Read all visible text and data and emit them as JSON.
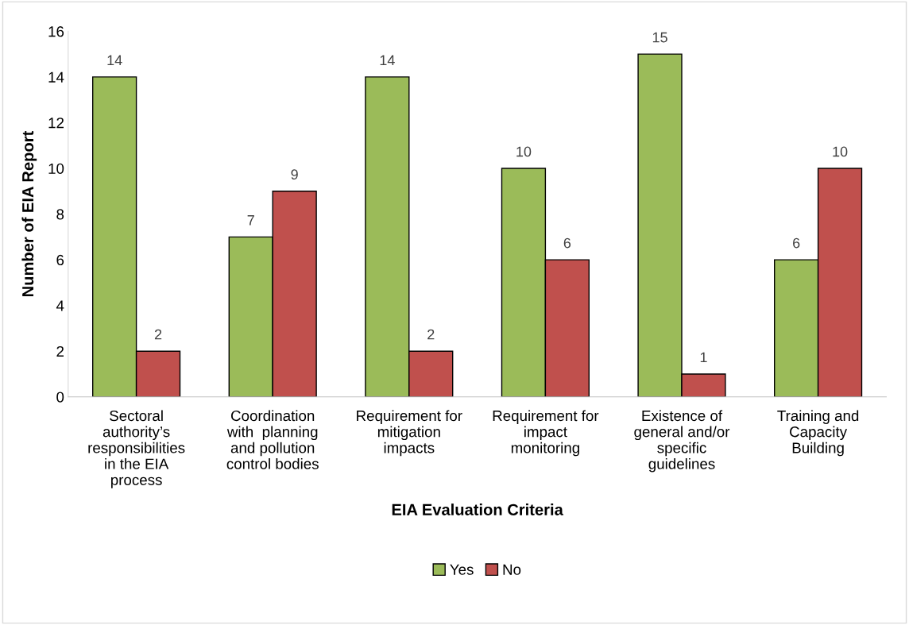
{
  "chart_data": {
    "type": "bar",
    "xlabel": "EIA Evaluation Criteria",
    "ylabel": "Number of EIA Report",
    "categories": [
      "Sectoral\nauthority’s\nresponsibilities\nin the EIA\nprocess",
      "Coordination\nwith  planning\nand pollution\ncontrol bodies",
      "Requirement for\nmitigation\nimpacts",
      "Requirement for\nimpact\nmonitoring",
      "Existence of\ngeneral and/or\nspecific\nguidelines",
      "Training and\nCapacity\nBuilding"
    ],
    "series": [
      {
        "name": "Yes",
        "color": "#9bbb59",
        "values": [
          14,
          7,
          14,
          10,
          15,
          6
        ]
      },
      {
        "name": "No",
        "color": "#c0504d",
        "values": [
          2,
          9,
          2,
          6,
          1,
          10
        ]
      }
    ],
    "ylim": [
      0,
      16
    ],
    "yticks": [
      0,
      2,
      4,
      6,
      8,
      10,
      12,
      14,
      16
    ],
    "data_labels": true,
    "grid": false,
    "legend": "bottom"
  }
}
